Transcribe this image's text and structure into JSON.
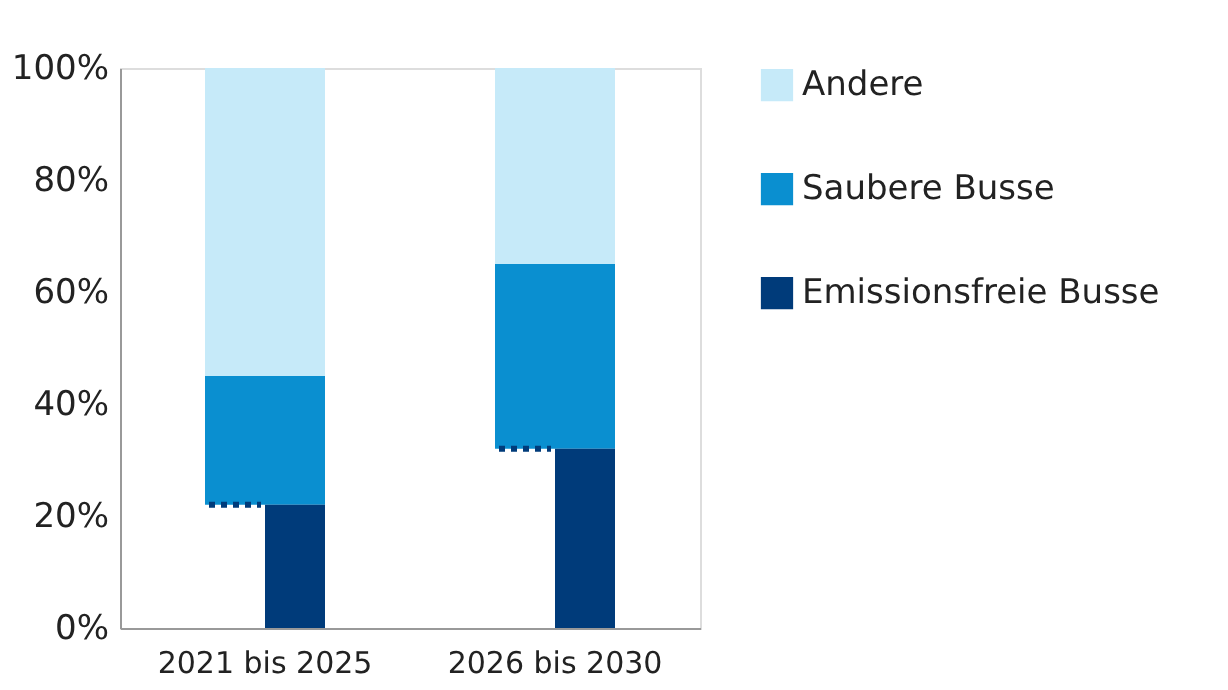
{
  "chart_data": {
    "type": "bar",
    "categories": [
      "2021 bis 2025",
      "2026 bis 2030"
    ],
    "series": [
      {
        "name": "Emissionsfreie Busse",
        "color": "#003b7a",
        "values": [
          22,
          32
        ]
      },
      {
        "name": "Saubere Busse",
        "color": "#0a8fd0",
        "values": [
          23,
          33
        ]
      },
      {
        "name": "Andere",
        "color": "#c6eaf9",
        "values": [
          55,
          35
        ]
      }
    ],
    "ylim": [
      0,
      100
    ],
    "yticks": [
      {
        "value": 0,
        "label": "0%"
      },
      {
        "value": 20,
        "label": "20%"
      },
      {
        "value": 40,
        "label": "40%"
      },
      {
        "value": 60,
        "label": "60%"
      },
      {
        "value": 80,
        "label": "80%"
      },
      {
        "value": 100,
        "label": "100%"
      }
    ],
    "ref_lines": [
      {
        "axis": "y",
        "value": 22,
        "color": "#003b7a",
        "line_style": "dotted"
      },
      {
        "axis": "y",
        "value": 32,
        "color": "#003b7a",
        "line_style": "dotted"
      }
    ],
    "stacked": true,
    "grid": false,
    "legend": "right"
  }
}
